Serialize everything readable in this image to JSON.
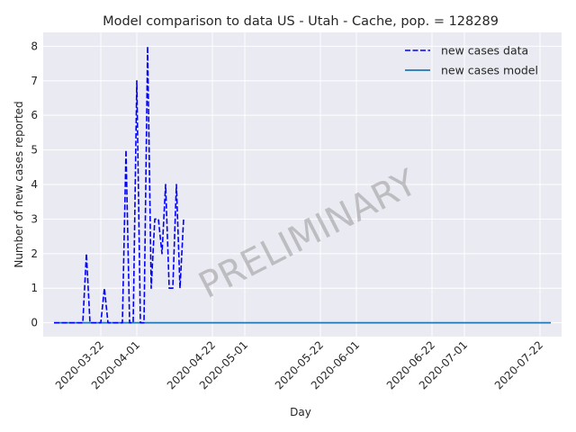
{
  "chart_data": {
    "type": "line",
    "title": "Model comparison to data US - Utah - Cache, pop. = 128289",
    "xlabel": "Day",
    "ylabel": "Number of new cases reported",
    "xlim": [
      "2020-03-06",
      "2020-07-28"
    ],
    "ylim": [
      -0.4,
      8.4
    ],
    "grid": true,
    "legend_position": "top-right",
    "xticks": [
      "2020-03-22",
      "2020-04-01",
      "2020-04-22",
      "2020-05-01",
      "2020-05-22",
      "2020-06-01",
      "2020-06-22",
      "2020-07-01",
      "2020-07-22"
    ],
    "yticks": [
      0,
      1,
      2,
      3,
      4,
      5,
      6,
      7,
      8
    ],
    "annotation": "PRELIMINARY",
    "series": [
      {
        "name": "new cases data",
        "color": "#0000ff",
        "style": "dashed",
        "x": [
          "2020-03-09",
          "2020-03-10",
          "2020-03-11",
          "2020-03-12",
          "2020-03-13",
          "2020-03-14",
          "2020-03-15",
          "2020-03-16",
          "2020-03-17",
          "2020-03-18",
          "2020-03-19",
          "2020-03-20",
          "2020-03-21",
          "2020-03-22",
          "2020-03-23",
          "2020-03-24",
          "2020-03-25",
          "2020-03-26",
          "2020-03-27",
          "2020-03-28",
          "2020-03-29",
          "2020-03-30",
          "2020-03-31",
          "2020-04-01",
          "2020-04-02",
          "2020-04-03",
          "2020-04-04",
          "2020-04-05",
          "2020-04-06",
          "2020-04-07",
          "2020-04-08",
          "2020-04-09",
          "2020-04-10",
          "2020-04-11",
          "2020-04-12",
          "2020-04-13",
          "2020-04-14"
        ],
        "y": [
          0,
          0,
          0,
          0,
          0,
          0,
          0,
          0,
          0,
          2,
          0,
          0,
          0,
          0,
          1,
          0,
          0,
          0,
          0,
          0,
          5,
          0,
          0,
          7,
          0,
          0,
          8,
          1,
          3,
          3,
          2,
          4,
          1,
          1,
          4,
          1,
          3
        ]
      },
      {
        "name": "new cases model",
        "color": "#1f77b4",
        "style": "solid",
        "x": [
          "2020-03-09",
          "2020-07-25"
        ],
        "y": [
          0,
          0
        ]
      }
    ]
  }
}
